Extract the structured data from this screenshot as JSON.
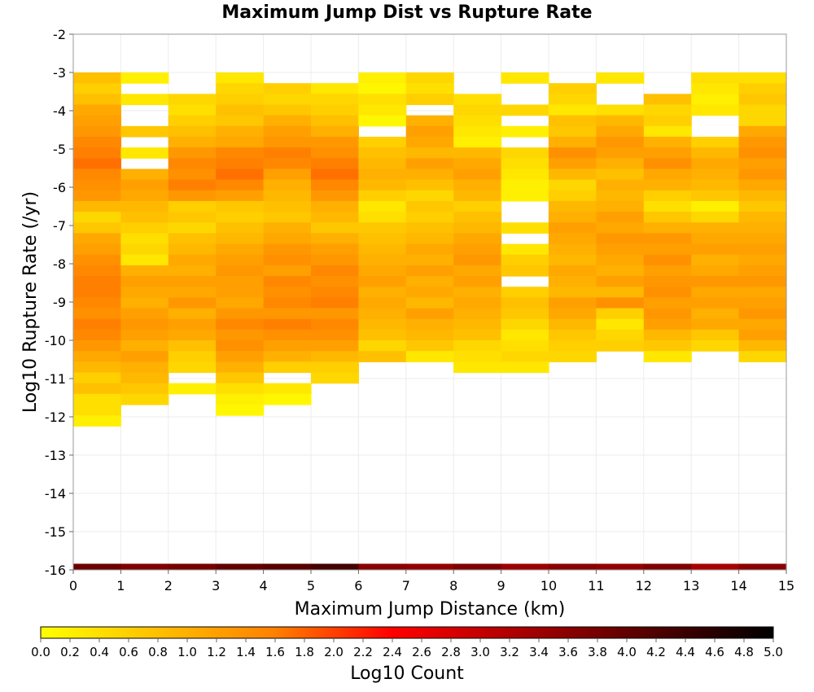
{
  "chart_data": {
    "type": "heatmap",
    "title": "Maximum Jump Dist vs Rupture Rate",
    "xlabel": "Maximum Jump Distance (km)",
    "ylabel": "Log10 Rupture Rate (/yr)",
    "xlim": [
      0,
      15
    ],
    "ylim": [
      -16,
      -2
    ],
    "x_ticks": [
      "0",
      "1",
      "2",
      "3",
      "4",
      "5",
      "6",
      "7",
      "8",
      "9",
      "10",
      "11",
      "12",
      "13",
      "14",
      "15"
    ],
    "y_ticks": [
      "-2",
      "-3",
      "-4",
      "-5",
      "-6",
      "-7",
      "-8",
      "-9",
      "-10",
      "-11",
      "-12",
      "-13",
      "-14",
      "-15",
      "-16"
    ],
    "bin_width_km": 1,
    "bin_height_log10": 0.28,
    "top_log10_rate": -3,
    "grid": true,
    "colorbar": {
      "label": "Log10 Count",
      "range": [
        0,
        5
      ],
      "tick_labels": [
        "0.0",
        "0.2",
        "0.4",
        "0.6",
        "0.8",
        "1.0",
        "1.2",
        "1.4",
        "1.6",
        "1.8",
        "2.0",
        "2.2",
        "2.4",
        "2.6",
        "2.8",
        "3.0",
        "3.2",
        "3.4",
        "3.6",
        "3.8",
        "4.0",
        "4.2",
        "4.4",
        "4.6",
        "4.8",
        "5.0"
      ],
      "colors": [
        "#ffff00",
        "#ff8000",
        "#ff0000",
        "#000000"
      ],
      "position": "bottom"
    },
    "bins": [
      {
        "x_start": 0,
        "values": [
          0.8,
          0.6,
          0.8,
          1.1,
          1.2,
          1.3,
          1.5,
          1.6,
          1.7,
          1.5,
          1.4,
          1.3,
          0.9,
          0.5,
          0.7,
          1.1,
          1.2,
          1.4,
          1.5,
          1.6,
          1.6,
          1.5,
          1.4,
          1.6,
          1.5,
          1.3,
          1.1,
          0.9,
          0.6,
          0.8,
          0.4,
          0.4,
          0.2
        ]
      },
      {
        "x_start": 1,
        "values": [
          0.2,
          null,
          0.3,
          null,
          null,
          0.7,
          null,
          0.3,
          null,
          1.0,
          1.2,
          1.1,
          0.9,
          0.8,
          0.6,
          0.4,
          0.5,
          0.3,
          1.0,
          1.2,
          1.1,
          1.0,
          1.2,
          1.3,
          1.2,
          1.0,
          1.2,
          1.0,
          0.9,
          0.7,
          0.5,
          null,
          null
        ]
      },
      {
        "x_start": 2,
        "values": [
          null,
          null,
          0.5,
          0.4,
          0.6,
          0.8,
          1.0,
          1.3,
          1.5,
          1.4,
          1.6,
          1.3,
          0.6,
          0.7,
          0.5,
          0.8,
          0.9,
          1.1,
          1.0,
          1.2,
          1.1,
          1.3,
          1.0,
          1.2,
          1.1,
          0.8,
          0.6,
          0.5,
          null,
          0.2
        ]
      },
      {
        "x_start": 3,
        "values": [
          0.3,
          0.5,
          0.6,
          0.8,
          0.7,
          1.0,
          1.1,
          1.5,
          1.6,
          1.7,
          1.5,
          1.2,
          0.7,
          0.6,
          0.8,
          0.9,
          1.1,
          1.2,
          1.3,
          1.2,
          1.2,
          1.1,
          1.3,
          1.5,
          1.3,
          1.4,
          1.2,
          1.0,
          0.7,
          0.4,
          0.2,
          0.1
        ]
      },
      {
        "x_start": 4,
        "values": [
          null,
          0.6,
          0.5,
          0.7,
          1.0,
          1.2,
          1.3,
          1.6,
          1.5,
          1.2,
          1.0,
          0.9,
          0.8,
          0.7,
          1.0,
          1.1,
          1.3,
          1.4,
          1.2,
          1.5,
          1.4,
          1.5,
          1.3,
          1.6,
          1.4,
          1.2,
          1.0,
          0.6,
          null,
          0.3,
          0.1
        ]
      },
      {
        "x_start": 5,
        "values": [
          null,
          0.3,
          0.5,
          0.6,
          0.8,
          1.0,
          1.3,
          1.4,
          1.6,
          1.7,
          1.5,
          1.3,
          1.0,
          0.9,
          0.7,
          1.0,
          1.2,
          1.3,
          1.5,
          1.4,
          1.5,
          1.6,
          1.3,
          1.5,
          1.4,
          1.2,
          0.9,
          0.6,
          0.5
        ]
      },
      {
        "x_start": 6,
        "values": [
          0.2,
          0.1,
          0.4,
          0.3,
          0.1,
          null,
          0.6,
          0.8,
          0.9,
          1.0,
          0.9,
          0.6,
          0.3,
          0.4,
          0.7,
          0.8,
          0.9,
          1.0,
          1.1,
          1.2,
          1.0,
          1.1,
          1.0,
          0.9,
          0.8,
          0.5,
          0.8
        ]
      },
      {
        "x_start": 7,
        "values": [
          0.5,
          0.4,
          0.6,
          null,
          1.0,
          1.2,
          1.1,
          0.9,
          1.2,
          1.0,
          0.8,
          0.5,
          0.7,
          0.6,
          0.8,
          0.9,
          1.1,
          1.0,
          1.2,
          1.0,
          1.1,
          0.9,
          1.2,
          1.0,
          0.9,
          0.7,
          0.3
        ]
      },
      {
        "x_start": 8,
        "values": [
          null,
          null,
          0.4,
          0.5,
          0.4,
          0.3,
          0.2,
          0.9,
          1.1,
          1.2,
          1.0,
          0.9,
          0.6,
          0.8,
          0.9,
          1.1,
          1.2,
          1.3,
          1.1,
          1.2,
          1.0,
          1.1,
          1.0,
          0.9,
          0.8,
          0.5,
          0.4,
          0.3
        ]
      },
      {
        "x_start": 9,
        "values": [
          0.3,
          null,
          null,
          0.5,
          null,
          0.2,
          null,
          0.5,
          0.4,
          0.3,
          0.2,
          0.2,
          null,
          null,
          0.4,
          null,
          0.3,
          0.6,
          0.7,
          null,
          0.6,
          0.8,
          0.7,
          0.5,
          0.3,
          0.4,
          0.5,
          0.3
        ]
      },
      {
        "x_start": 10,
        "values": [
          null,
          0.6,
          0.5,
          0.3,
          0.8,
          0.7,
          1.0,
          1.4,
          1.2,
          0.9,
          0.5,
          0.6,
          0.9,
          1.0,
          1.2,
          1.1,
          1.0,
          0.9,
          1.1,
          1.0,
          0.9,
          1.2,
          1.1,
          0.9,
          0.7,
          0.6,
          0.5
        ]
      },
      {
        "x_start": 11,
        "values": [
          0.3,
          null,
          null,
          0.4,
          0.9,
          1.1,
          1.3,
          1.2,
          1.0,
          0.8,
          1.0,
          0.9,
          1.0,
          1.2,
          1.1,
          1.3,
          1.2,
          1.1,
          1.0,
          1.2,
          0.9,
          1.4,
          0.6,
          0.3,
          0.5,
          0.6
        ]
      },
      {
        "x_start": 12,
        "values": [
          null,
          null,
          0.8,
          0.5,
          0.6,
          0.3,
          1.0,
          1.2,
          1.4,
          1.1,
          1.0,
          0.6,
          0.4,
          0.7,
          1.0,
          1.3,
          1.2,
          1.4,
          1.2,
          1.3,
          1.4,
          1.2,
          1.3,
          1.2,
          0.9,
          0.7,
          0.3
        ]
      },
      {
        "x_start": 13,
        "values": [
          0.4,
          0.3,
          0.2,
          0.3,
          null,
          null,
          0.6,
          0.9,
          1.1,
          1.0,
          0.9,
          0.7,
          0.2,
          0.5,
          1.0,
          1.1,
          1.2,
          1.0,
          1.1,
          1.3,
          1.1,
          1.2,
          1.0,
          1.1,
          0.7,
          0.5
        ]
      },
      {
        "x_start": 14,
        "values": [
          0.4,
          0.6,
          0.7,
          0.5,
          0.5,
          1.1,
          1.3,
          1.4,
          1.2,
          1.3,
          1.1,
          0.9,
          0.7,
          0.9,
          1.0,
          1.1,
          1.2,
          1.1,
          1.2,
          1.3,
          1.1,
          1.2,
          1.3,
          1.1,
          1.2,
          0.9,
          0.5
        ]
      }
    ],
    "bottom_row": {
      "log10_rate": -16,
      "values": [
        3.9,
        3.7,
        3.8,
        4.0,
        4.1,
        4.3,
        3.6,
        3.5,
        3.7,
        3.4,
        3.6,
        3.5,
        3.7,
        3.3,
        3.6
      ]
    }
  }
}
